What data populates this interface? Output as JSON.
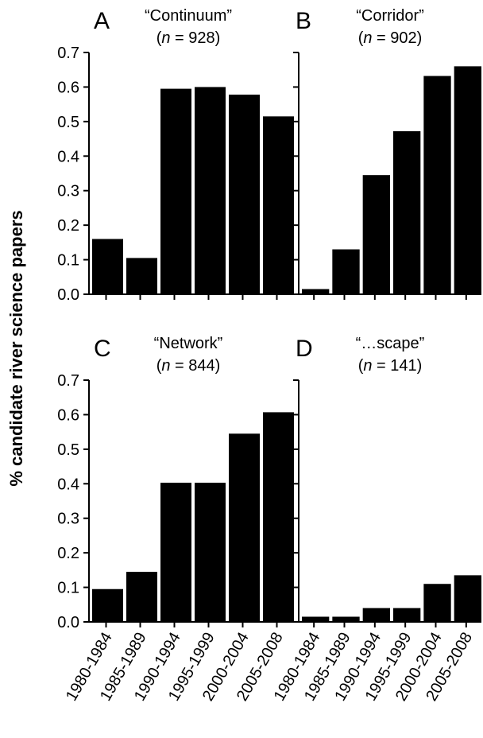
{
  "chart_data": [
    {
      "type": "bar",
      "panel": "A",
      "title": "“Continuum”",
      "subtitle_prefix": "(",
      "subtitle_n": "n",
      "subtitle_suffix": " = 928)",
      "categories": [
        "1980-1984",
        "1985-1989",
        "1990-1994",
        "1995-1999",
        "2000-2004",
        "2005-2008"
      ],
      "values": [
        0.16,
        0.105,
        0.595,
        0.6,
        0.578,
        0.515
      ],
      "ylim": [
        0,
        0.7
      ],
      "yticks": [
        "0.0",
        "0.1",
        "0.2",
        "0.3",
        "0.4",
        "0.5",
        "0.6",
        "0.7"
      ],
      "show_yticks": true,
      "show_categories": false
    },
    {
      "type": "bar",
      "panel": "B",
      "title": "“Corridor”",
      "subtitle_prefix": "(",
      "subtitle_n": "n",
      "subtitle_suffix": " = 902)",
      "categories": [
        "1980-1984",
        "1985-1989",
        "1990-1994",
        "1995-1999",
        "2000-2004",
        "2005-2008"
      ],
      "values": [
        0.015,
        0.13,
        0.345,
        0.472,
        0.632,
        0.66
      ],
      "ylim": [
        0,
        0.7
      ],
      "yticks": [],
      "show_yticks": false,
      "show_categories": false
    },
    {
      "type": "bar",
      "panel": "C",
      "title": "“Network”",
      "subtitle_prefix": "(",
      "subtitle_n": "n",
      "subtitle_suffix": " = 844)",
      "categories": [
        "1980-1984",
        "1985-1989",
        "1990-1994",
        "1995-1999",
        "2000-2004",
        "2005-2008"
      ],
      "values": [
        0.095,
        0.145,
        0.403,
        0.403,
        0.545,
        0.607
      ],
      "ylim": [
        0,
        0.7
      ],
      "yticks": [
        "0.0",
        "0.1",
        "0.2",
        "0.3",
        "0.4",
        "0.5",
        "0.6",
        "0.7"
      ],
      "show_yticks": true,
      "show_categories": true
    },
    {
      "type": "bar",
      "panel": "D",
      "title": "“…scape”",
      "subtitle_prefix": "(",
      "subtitle_n": "n",
      "subtitle_suffix": " = 141)",
      "categories": [
        "1980-1984",
        "1985-1989",
        "1990-1994",
        "1995-1999",
        "2000-2004",
        "2005-2008"
      ],
      "values": [
        0.015,
        0.015,
        0.04,
        0.04,
        0.11,
        0.135
      ],
      "ylim": [
        0,
        0.7
      ],
      "yticks": [],
      "show_yticks": false,
      "show_categories": true
    }
  ],
  "ylabel": "% candidate river science papers"
}
